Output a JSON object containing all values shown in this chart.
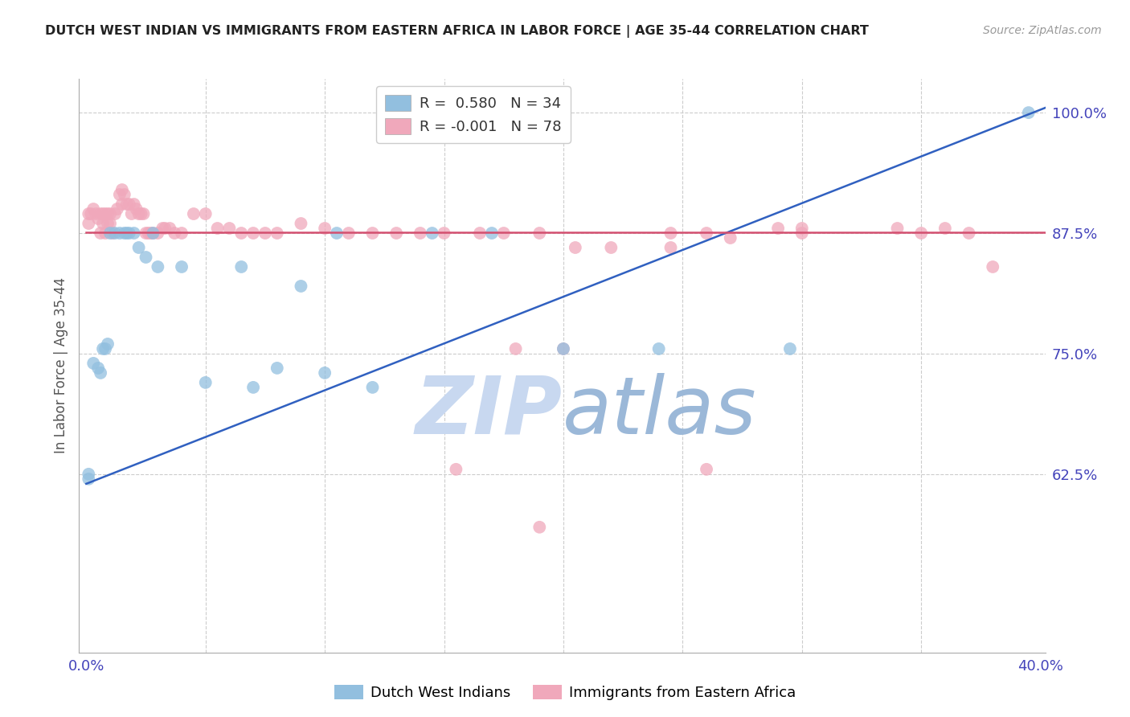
{
  "title": "DUTCH WEST INDIAN VS IMMIGRANTS FROM EASTERN AFRICA IN LABOR FORCE | AGE 35-44 CORRELATION CHART",
  "source": "Source: ZipAtlas.com",
  "ylabel": "In Labor Force | Age 35-44",
  "xlim": [
    -0.003,
    0.402
  ],
  "ylim": [
    0.44,
    1.035
  ],
  "yticks": [
    1.0,
    0.875,
    0.75,
    0.625
  ],
  "ytick_labels": [
    "100.0%",
    "87.5%",
    "75.0%",
    "62.5%"
  ],
  "blue_color": "#92BFDF",
  "pink_color": "#F0A8BB",
  "blue_line_color": "#3060C0",
  "pink_line_color": "#D45070",
  "axis_tick_color": "#4444BB",
  "grid_color": "#CCCCCC",
  "watermark_color": "#C8D8F0",
  "legend_r_blue": " 0.580",
  "legend_n_blue": "34",
  "legend_r_pink": "-0.001",
  "legend_n_pink": "78",
  "blue_line_x0": 0.0,
  "blue_line_y0": 0.615,
  "blue_line_x1": 0.402,
  "blue_line_y1": 1.005,
  "pink_line_y": 0.876,
  "blue_points_x": [
    0.001,
    0.001,
    0.003,
    0.005,
    0.006,
    0.007,
    0.008,
    0.009,
    0.01,
    0.012,
    0.014,
    0.016,
    0.017,
    0.018,
    0.02,
    0.022,
    0.025,
    0.028,
    0.03,
    0.04,
    0.05,
    0.065,
    0.07,
    0.08,
    0.09,
    0.1,
    0.105,
    0.12,
    0.145,
    0.17,
    0.2,
    0.24,
    0.295,
    0.395
  ],
  "blue_points_y": [
    0.625,
    0.62,
    0.74,
    0.735,
    0.73,
    0.755,
    0.755,
    0.76,
    0.875,
    0.875,
    0.875,
    0.875,
    0.875,
    0.875,
    0.875,
    0.86,
    0.85,
    0.875,
    0.84,
    0.84,
    0.72,
    0.84,
    0.715,
    0.735,
    0.82,
    0.73,
    0.875,
    0.715,
    0.875,
    0.875,
    0.755,
    0.755,
    0.755,
    1.0
  ],
  "pink_points_x": [
    0.001,
    0.001,
    0.002,
    0.003,
    0.004,
    0.005,
    0.006,
    0.006,
    0.007,
    0.007,
    0.008,
    0.008,
    0.009,
    0.009,
    0.01,
    0.01,
    0.011,
    0.012,
    0.013,
    0.014,
    0.015,
    0.015,
    0.016,
    0.017,
    0.018,
    0.019,
    0.02,
    0.021,
    0.022,
    0.023,
    0.024,
    0.025,
    0.026,
    0.027,
    0.028,
    0.03,
    0.032,
    0.033,
    0.035,
    0.037,
    0.04,
    0.045,
    0.05,
    0.055,
    0.06,
    0.065,
    0.07,
    0.075,
    0.08,
    0.09,
    0.1,
    0.11,
    0.12,
    0.13,
    0.14,
    0.15,
    0.165,
    0.175,
    0.19,
    0.205,
    0.22,
    0.245,
    0.27,
    0.29,
    0.3,
    0.18,
    0.2,
    0.245,
    0.26,
    0.3,
    0.35,
    0.37,
    0.36,
    0.34,
    0.38,
    0.26,
    0.155,
    0.19
  ],
  "pink_points_y": [
    0.895,
    0.885,
    0.895,
    0.9,
    0.895,
    0.89,
    0.895,
    0.875,
    0.895,
    0.885,
    0.895,
    0.875,
    0.895,
    0.885,
    0.895,
    0.885,
    0.875,
    0.895,
    0.9,
    0.915,
    0.92,
    0.905,
    0.915,
    0.905,
    0.905,
    0.895,
    0.905,
    0.9,
    0.895,
    0.895,
    0.895,
    0.875,
    0.875,
    0.875,
    0.875,
    0.875,
    0.88,
    0.88,
    0.88,
    0.875,
    0.875,
    0.895,
    0.895,
    0.88,
    0.88,
    0.875,
    0.875,
    0.875,
    0.875,
    0.885,
    0.88,
    0.875,
    0.875,
    0.875,
    0.875,
    0.875,
    0.875,
    0.875,
    0.875,
    0.86,
    0.86,
    0.86,
    0.87,
    0.88,
    0.88,
    0.755,
    0.755,
    0.875,
    0.875,
    0.875,
    0.875,
    0.875,
    0.88,
    0.88,
    0.84,
    0.63,
    0.63,
    0.57
  ]
}
